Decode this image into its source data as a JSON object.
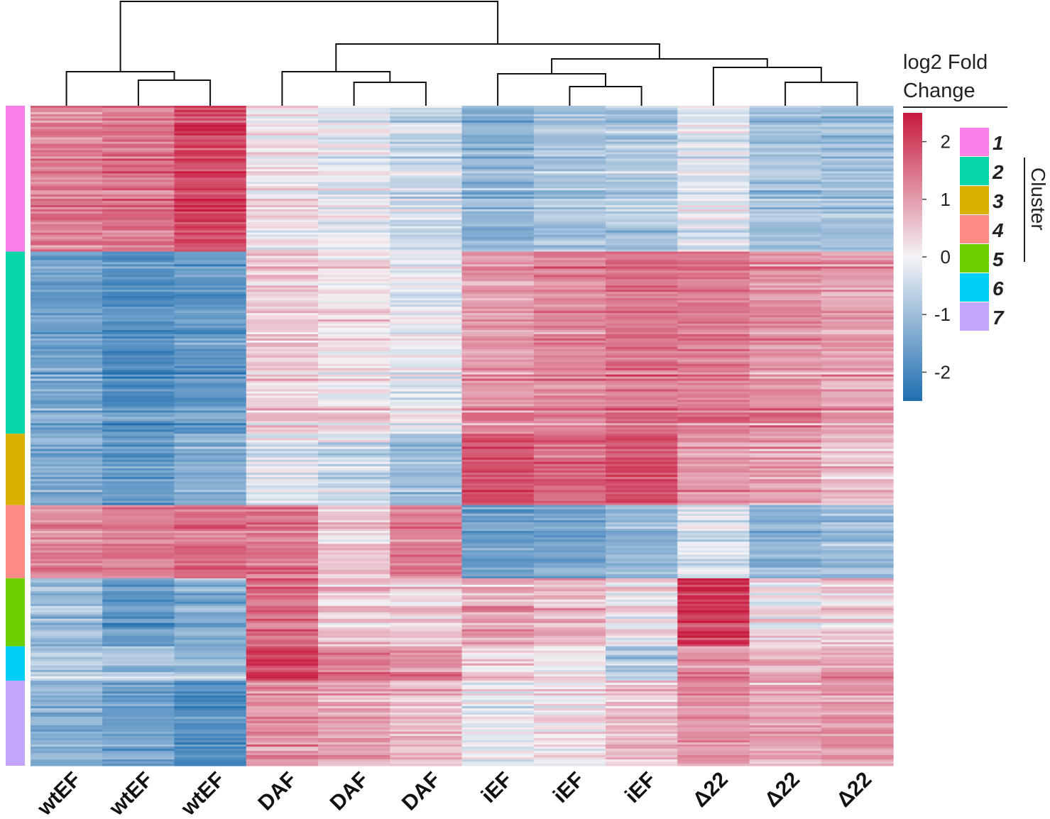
{
  "chart_data": {
    "type": "heatmap",
    "title": "",
    "columns": [
      "wtEF",
      "wtEF",
      "wtEF",
      "DAF",
      "DAF",
      "DAF",
      "iEF",
      "iEF",
      "iEF",
      "Δ22",
      "Δ22",
      "Δ22"
    ],
    "colorbar": {
      "title_line1": "log2 Fold",
      "title_line2": "Change",
      "ticks": [
        2,
        1,
        0,
        -1,
        -2
      ],
      "tick_labels": [
        "2",
        "1",
        "0",
        "-1",
        "-2"
      ],
      "range": [
        -2.5,
        2.5
      ],
      "low_color": "#1f6eb0",
      "mid_color": "#f4f3f6",
      "high_color": "#c81a3e"
    },
    "cluster_title": "Cluster",
    "clusters": [
      {
        "label": "1",
        "color": "#fb7fe8",
        "gene_fraction": 0.221,
        "means": [
          1.3,
          1.4,
          2.0,
          0.1,
          -0.1,
          -0.4,
          -1.1,
          -0.8,
          -0.7,
          -0.2,
          -0.8,
          -0.9
        ]
      },
      {
        "label": "2",
        "color": "#06d6a8",
        "gene_fraction": 0.276,
        "means": [
          -1.4,
          -1.8,
          -1.6,
          0.4,
          0.2,
          -0.1,
          1.0,
          1.2,
          1.4,
          1.3,
          1.1,
          0.9
        ]
      },
      {
        "label": "3",
        "color": "#dab000",
        "gene_fraction": 0.108,
        "means": [
          -1.2,
          -1.5,
          -1.1,
          -0.1,
          -0.3,
          -0.9,
          1.8,
          1.6,
          1.9,
          1.0,
          0.9,
          0.5
        ]
      },
      {
        "label": "4",
        "color": "#fb8b83",
        "gene_fraction": 0.111,
        "means": [
          1.2,
          1.3,
          1.5,
          1.4,
          0.4,
          1.3,
          -1.5,
          -1.4,
          -1.0,
          -0.2,
          -1.1,
          -0.9
        ]
      },
      {
        "label": "5",
        "color": "#6ccf00",
        "gene_fraction": 0.103,
        "means": [
          -1.0,
          -1.7,
          -1.3,
          1.5,
          0.4,
          0.3,
          0.8,
          0.6,
          0.1,
          2.1,
          0.1,
          0.3
        ]
      },
      {
        "label": "6",
        "color": "#00cff5",
        "gene_fraction": 0.052,
        "means": [
          -0.7,
          -0.9,
          -1.1,
          2.0,
          1.2,
          1.0,
          0.2,
          0.0,
          -0.8,
          1.0,
          0.6,
          0.7
        ]
      },
      {
        "label": "7",
        "color": "#c3a6fa",
        "gene_fraction": 0.129,
        "means": [
          -1.1,
          -1.4,
          -1.8,
          1.1,
          0.9,
          0.6,
          0.0,
          0.2,
          0.6,
          1.1,
          0.9,
          1.0
        ]
      }
    ],
    "column_dendrogram": {
      "merges": [
        {
          "left": 1,
          "right": 2,
          "height": 0.12
        },
        {
          "left": 0,
          "right": "m0",
          "height": 0.16
        },
        {
          "left": 4,
          "right": 5,
          "height": 0.11
        },
        {
          "left": 3,
          "right": "m2",
          "height": 0.16
        },
        {
          "left": 7,
          "right": 8,
          "height": 0.09
        },
        {
          "left": 6,
          "right": "m4",
          "height": 0.15
        },
        {
          "left": 10,
          "right": 11,
          "height": 0.11
        },
        {
          "left": 9,
          "right": "m6",
          "height": 0.18
        },
        {
          "left": "m5",
          "right": "m7",
          "height": 0.22
        },
        {
          "left": "m3",
          "right": "m8",
          "height": 0.29
        },
        {
          "left": "m1",
          "right": "m9",
          "height": 0.49
        }
      ]
    }
  }
}
